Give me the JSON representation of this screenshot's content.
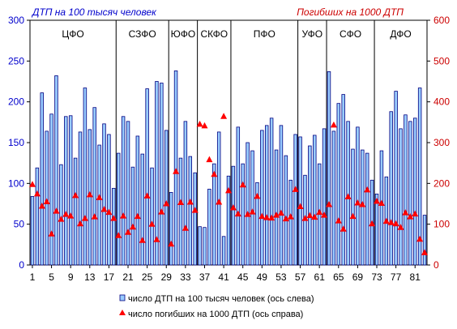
{
  "chart_data": {
    "type": "bar",
    "title_left": "ДТП на 100 тысяч человек",
    "title_right": "Погибших на 1000 ДТП",
    "y_left": {
      "min": 0,
      "max": 300,
      "step": 50,
      "color": "#0000cc"
    },
    "y_right": {
      "min": 0,
      "max": 600,
      "step": 100,
      "color": "#cc0000"
    },
    "x_ticks": [
      1,
      5,
      9,
      13,
      17,
      21,
      25,
      29,
      33,
      37,
      41,
      45,
      49,
      53,
      57,
      61,
      65,
      69,
      73,
      77,
      81
    ],
    "regions": [
      {
        "label": "ЦФО",
        "start": 1,
        "end": 18
      },
      {
        "label": "СЗФО",
        "start": 19,
        "end": 29
      },
      {
        "label": "ЮФО",
        "start": 30,
        "end": 35
      },
      {
        "label": "СКФО",
        "start": 36,
        "end": 42
      },
      {
        "label": "ПФО",
        "start": 43,
        "end": 56
      },
      {
        "label": "УФО",
        "start": 57,
        "end": 62
      },
      {
        "label": "СФО",
        "start": 63,
        "end": 72
      },
      {
        "label": "ДФО",
        "start": 73,
        "end": 83
      }
    ],
    "series": [
      {
        "name": "число ДТП на 100 тысяч человек (ось слева)",
        "axis": "left",
        "color": "#99ccff",
        "values": [
          84,
          119,
          211,
          164,
          185,
          232,
          123,
          182,
          183,
          131,
          163,
          217,
          166,
          193,
          147,
          173,
          160,
          94,
          137,
          182,
          176,
          120,
          158,
          136,
          216,
          119,
          225,
          223,
          165,
          89,
          238,
          131,
          176,
          133,
          113,
          47,
          46,
          93,
          124,
          163,
          35,
          109,
          121,
          169,
          124,
          150,
          140,
          101,
          165,
          171,
          180,
          141,
          171,
          134,
          104,
          160,
          157,
          110,
          146,
          159,
          124,
          167,
          237,
          164,
          198,
          209,
          176,
          142,
          169,
          141,
          137,
          104,
          87,
          140,
          108,
          188,
          213,
          167,
          184,
          176,
          180,
          217,
          61
        ]
      },
      {
        "name": "число погибших на 1000 ДТП  (ось справа)",
        "axis": "right",
        "color": "#ff0000",
        "values": [
          197,
          174,
          144,
          155,
          76,
          132,
          112,
          124,
          120,
          170,
          101,
          114,
          172,
          118,
          165,
          136,
          129,
          114,
          72,
          120,
          80,
          93,
          119,
          60,
          169,
          100,
          62,
          130,
          150,
          51,
          229,
          153,
          90,
          154,
          134,
          345,
          341,
          258,
          222,
          154,
          364,
          182,
          140,
          125,
          196,
          124,
          130,
          168,
          119,
          116,
          115,
          122,
          127,
          113,
          118,
          185,
          143,
          114,
          121,
          117,
          129,
          122,
          148,
          343,
          108,
          88,
          167,
          119,
          152,
          148,
          184,
          101,
          156,
          151,
          107,
          104,
          101,
          92,
          128,
          118,
          125,
          63,
          30
        ]
      }
    ]
  }
}
